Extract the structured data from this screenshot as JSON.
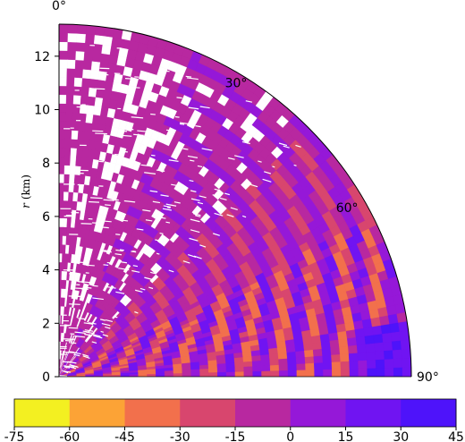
{
  "chart_data": {
    "type": "heatmap",
    "projection": "polar-quarter",
    "title": "",
    "ylabel_var": "r",
    "ylabel_unit": "(km)",
    "r_range": [
      0,
      13.2
    ],
    "theta_range_deg": [
      0,
      90
    ],
    "r_ticks": [
      "0",
      "2",
      "4",
      "6",
      "8",
      "10",
      "12"
    ],
    "r_tick_values": [
      0,
      2,
      4,
      6,
      8,
      10,
      12
    ],
    "theta_ticks": [
      "0°",
      "30°",
      "60°",
      "90°"
    ],
    "theta_tick_values": [
      0,
      30,
      60,
      90
    ],
    "colorbar": {
      "orientation": "horizontal",
      "ticks": [
        "-75",
        "-60",
        "-45",
        "-30",
        "-15",
        "0",
        "15",
        "30",
        "45"
      ],
      "levels": [
        -75,
        -60,
        -45,
        -30,
        -15,
        0,
        15,
        30,
        45
      ],
      "colors": [
        "#f3f021",
        "#fca336",
        "#f2704c",
        "#d8466e",
        "#b828a0",
        "#9518d8",
        "#7014f2",
        "#4e13fa",
        "#2d19f9"
      ]
    },
    "field_description_values": {
      "dominant_level_range": [
        -15,
        0
      ],
      "banded_near_theta_deg": [
        55,
        90
      ],
      "peak_negative_near_theta_deg": [
        70,
        85
      ]
    }
  }
}
